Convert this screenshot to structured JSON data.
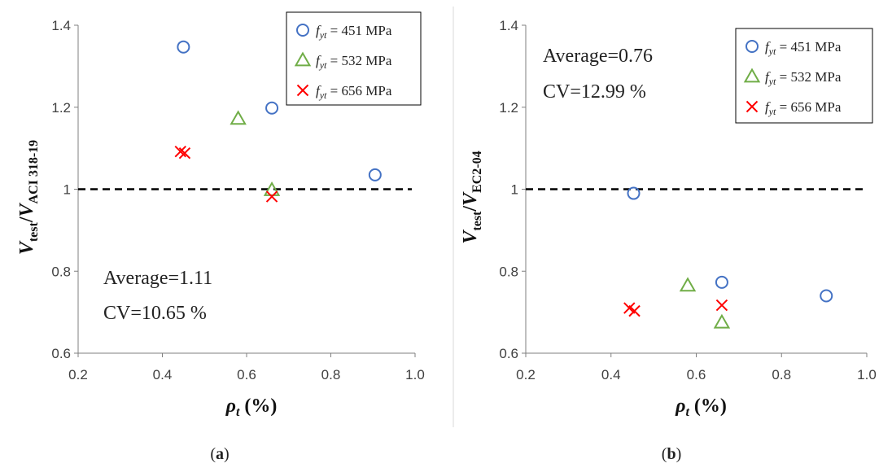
{
  "chart_data": [
    {
      "type": "scatter",
      "panel_label": "a",
      "xlabel": {
        "main": "ρ",
        "sub": "t",
        "unit": " (%)"
      },
      "ylabel": {
        "main": "V",
        "sub1": "test",
        "sep": "/",
        "main2": "V",
        "sub2": "ACI 318-19"
      },
      "xlim": [
        0.2,
        1.0
      ],
      "ylim": [
        0.6,
        1.4
      ],
      "x_ticks": [
        "0.2",
        "0.4",
        "0.6",
        "0.8",
        "1.0"
      ],
      "y_ticks": [
        "0.6",
        "0.8",
        "1",
        "1.2",
        "1.4"
      ],
      "reference_line": 1.0,
      "annotation": {
        "average": "Average=1.11",
        "cv": "CV=10.65 %"
      },
      "legend_position": "top-right",
      "series": [
        {
          "name": {
            "prefix": "f",
            "sub": "yt",
            "value": " = 451 MPa"
          },
          "marker": "circle",
          "color": "#4472C4",
          "x": [
            0.45,
            0.66,
            0.905
          ],
          "y": [
            1.347,
            1.198,
            1.035
          ]
        },
        {
          "name": {
            "prefix": "f",
            "sub": "yt",
            "value": " = 532 MPa"
          },
          "marker": "triangle",
          "color": "#70AD47",
          "x": [
            0.58,
            0.66
          ],
          "y": [
            1.172,
            0.998
          ]
        },
        {
          "name": {
            "prefix": "f",
            "sub": "yt",
            "value": " = 656 MPa"
          },
          "marker": "cross",
          "color": "#FF0000",
          "x": [
            0.443,
            0.453,
            0.66
          ],
          "y": [
            1.092,
            1.088,
            0.982
          ]
        }
      ]
    },
    {
      "type": "scatter",
      "panel_label": "b",
      "xlabel": {
        "main": "ρ",
        "sub": "t",
        "unit": " (%)"
      },
      "ylabel": {
        "main": "V",
        "sub1": "test",
        "sep": "/",
        "main2": "V",
        "sub2": "EC2-04"
      },
      "xlim": [
        0.2,
        1.0
      ],
      "ylim": [
        0.6,
        1.4
      ],
      "x_ticks": [
        "0.2",
        "0.4",
        "0.6",
        "0.8",
        "1.0"
      ],
      "y_ticks": [
        "0.6",
        "0.8",
        "1",
        "1.2",
        "1.4"
      ],
      "reference_line": 1.0,
      "annotation": {
        "average": "Average=0.76",
        "cv": "CV=12.99 %"
      },
      "legend_position": "top-right",
      "series": [
        {
          "name": {
            "prefix": "f",
            "sub": "yt",
            "value": " = 451 MPa"
          },
          "marker": "circle",
          "color": "#4472C4",
          "x": [
            0.453,
            0.66,
            0.905
          ],
          "y": [
            0.99,
            0.773,
            0.74
          ]
        },
        {
          "name": {
            "prefix": "f",
            "sub": "yt",
            "value": " = 532 MPa"
          },
          "marker": "triangle",
          "color": "#70AD47",
          "x": [
            0.58,
            0.66
          ],
          "y": [
            0.765,
            0.675
          ]
        },
        {
          "name": {
            "prefix": "f",
            "sub": "yt",
            "value": " = 656 MPa"
          },
          "marker": "cross",
          "color": "#FF0000",
          "x": [
            0.443,
            0.455,
            0.66
          ],
          "y": [
            0.71,
            0.703,
            0.717
          ]
        }
      ]
    }
  ]
}
